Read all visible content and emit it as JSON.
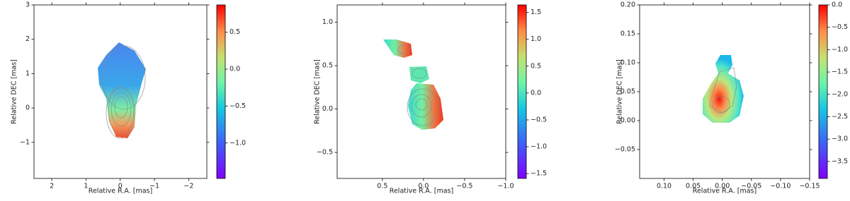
{
  "chart_data": [
    {
      "type": "heatmap",
      "xlabel": "Relative R.A. [mas]",
      "ylabel": "Relative DEC [mas]",
      "xlim": [
        2.52,
        -2.53
      ],
      "ylim": [
        -2.05,
        3
      ],
      "xticks": [
        2,
        1,
        0,
        {
          "value": -1,
          "label": "−1"
        },
        {
          "value": -2,
          "label": "−2"
        }
      ],
      "yticks": [
        {
          "value": -1,
          "label": "−1"
        },
        0,
        1,
        2,
        3
      ],
      "colorbar": {
        "lim": [
          -1.48,
          0.87
        ],
        "ticks": [
          {
            "value": -1.0,
            "label": "−1.0"
          },
          {
            "value": -0.5,
            "label": "−0.5"
          },
          {
            "value": 0.0,
            "label": "0.0"
          },
          0.5
        ]
      }
    },
    {
      "type": "heatmap",
      "xlabel": "Relative R.A. [mas]",
      "ylabel": "Relative DEC [mas]",
      "xlim": [
        1.05,
        -1.0
      ],
      "ylim": [
        -0.8,
        1.2
      ],
      "xticks": [
        0.5,
        {
          "value": 0.0,
          "label": "0.0"
        },
        {
          "value": -0.5,
          "label": "−0.5"
        },
        {
          "value": -1.0,
          "label": "−1.0"
        }
      ],
      "yticks": [
        {
          "value": -0.5,
          "label": "−0.5"
        },
        {
          "value": 0.0,
          "label": "0.0"
        },
        0.5,
        {
          "value": 1.0,
          "label": "1.0"
        }
      ],
      "colorbar": {
        "lim": [
          -1.59,
          1.64
        ],
        "ticks": [
          {
            "value": -1.5,
            "label": "−1.5"
          },
          {
            "value": -1.0,
            "label": "−1.0"
          },
          {
            "value": -0.5,
            "label": "−0.5"
          },
          {
            "value": 0.0,
            "label": "0.0"
          },
          0.5,
          {
            "value": 1.0,
            "label": "1.0"
          },
          1.5
        ]
      }
    },
    {
      "type": "heatmap",
      "xlabel": "Relative R.A. [mas]",
      "ylabel": "Relative DEC [mas]",
      "xlim": [
        0.142,
        -0.15
      ],
      "ylim": [
        -0.1,
        0.2
      ],
      "xticks": [
        {
          "value": 0.1,
          "label": "0.10"
        },
        0.05,
        {
          "value": 0.0,
          "label": "0.00"
        },
        {
          "value": -0.05,
          "label": "−0.05"
        },
        {
          "value": -0.1,
          "label": "−0.10"
        },
        {
          "value": -0.15,
          "label": "−0.15"
        }
      ],
      "yticks": [
        {
          "value": -0.05,
          "label": "−0.05"
        },
        {
          "value": 0.0,
          "label": "0.00"
        },
        0.05,
        {
          "value": 0.1,
          "label": "0.10"
        },
        0.15,
        {
          "value": 0.2,
          "label": "0.20"
        }
      ],
      "colorbar": {
        "lim": [
          -3.88,
          0.0
        ],
        "ticks": [
          {
            "value": -3.5,
            "label": "−3.5"
          },
          {
            "value": -3.0,
            "label": "−3.0"
          },
          {
            "value": -2.5,
            "label": "−2.5"
          },
          {
            "value": -2.0,
            "label": "−2.0"
          },
          {
            "value": -1.5,
            "label": "−1.5"
          },
          {
            "value": -1.0,
            "label": "−1.0"
          },
          {
            "value": -0.5,
            "label": "−0.5"
          },
          {
            "value": 0.0,
            "label": "0.0"
          }
        ]
      }
    }
  ]
}
